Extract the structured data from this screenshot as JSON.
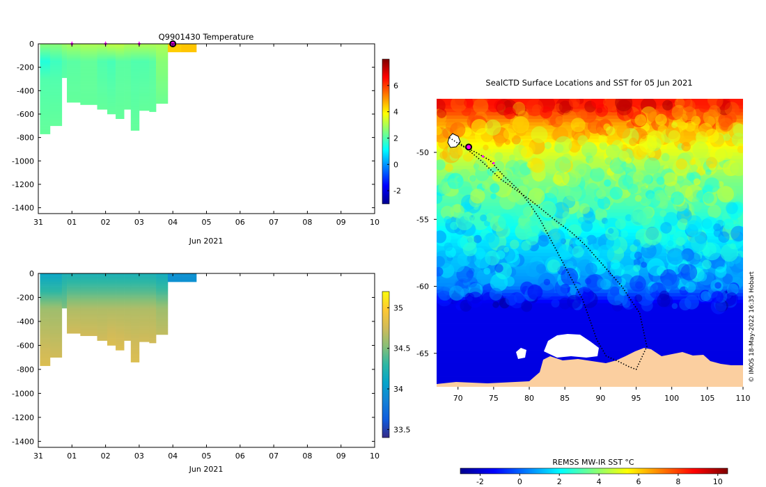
{
  "time_plots": {
    "title": "Q9901430  Temperature",
    "xlabel": "Jun 2021",
    "x_ticks": [
      "31",
      "01",
      "02",
      "03",
      "04",
      "05",
      "06",
      "07",
      "08",
      "09",
      "10"
    ],
    "y_ticks": [
      "0",
      "-200",
      "-400",
      "-600",
      "-800",
      "-1000",
      "-1200",
      "-1400"
    ]
  },
  "map_panel": {
    "title": "SealCTD Surface Locations and SST for 05 Jun 2021",
    "x_ticks": [
      "70",
      "75",
      "80",
      "85",
      "90",
      "95",
      "100",
      "105",
      "110"
    ],
    "y_ticks": [
      "-50",
      "-55",
      "-60",
      "-65"
    ],
    "colorbar_label": "REMSS MW-IR SST °C",
    "colorbar_ticks": [
      "-2",
      "0",
      "2",
      "4",
      "6",
      "8",
      "10"
    ],
    "credit": "© IMOS 18-May-2022 16:35 Hobart"
  },
  "colors": {
    "jet": [
      "#00008f",
      "#0000ff",
      "#007fff",
      "#00ffff",
      "#7fff7f",
      "#ffff00",
      "#ff7f00",
      "#ff0000",
      "#7f0000"
    ],
    "parula": [
      "#352a87",
      "#0f5cdd",
      "#1481d6",
      "#06a4ca",
      "#2eb7a4",
      "#87bf77",
      "#d1bb59",
      "#fec832",
      "#f9fb0e"
    ],
    "land": "#fbcfa0",
    "ice": "#ffffff",
    "track": "#000000",
    "marker": "#ff00ff"
  },
  "chart_data": [
    {
      "type": "heatmap",
      "name": "temperature-section",
      "title": "Q9901430  Temperature",
      "xlabel": "Jun 2021",
      "x_ticks": [
        "31",
        "01",
        "02",
        "03",
        "04",
        "05",
        "06",
        "07",
        "08",
        "09",
        "10"
      ],
      "xlim_days": [
        0,
        10
      ],
      "ylim": [
        -1450,
        0
      ],
      "colorbar": {
        "range": [
          -3,
          8
        ],
        "ticks": [
          -2,
          0,
          2,
          4,
          6
        ]
      },
      "profiles": [
        {
          "t": 0.05,
          "max_depth": 770,
          "levels": [
            {
              "d": 0,
              "v": 2.6
            },
            {
              "d": 150,
              "v": 1.5
            },
            {
              "d": 300,
              "v": 2.0
            },
            {
              "d": 770,
              "v": 2.2
            }
          ]
        },
        {
          "t": 0.35,
          "max_depth": 700,
          "levels": [
            {
              "d": 0,
              "v": 2.6
            },
            {
              "d": 150,
              "v": 1.8
            },
            {
              "d": 300,
              "v": 2.0
            },
            {
              "d": 700,
              "v": 2.2
            }
          ]
        },
        {
          "t": 0.7,
          "max_depth": 290,
          "levels": [
            {
              "d": 0,
              "v": 2.8
            },
            {
              "d": 150,
              "v": 2.0
            },
            {
              "d": 290,
              "v": 2.1
            }
          ]
        },
        {
          "t": 0.85,
          "max_depth": 500,
          "levels": [
            {
              "d": 0,
              "v": 2.9
            },
            {
              "d": 150,
              "v": 2.1
            },
            {
              "d": 500,
              "v": 2.2
            }
          ]
        },
        {
          "t": 1.25,
          "max_depth": 520,
          "levels": [
            {
              "d": 0,
              "v": 3.0
            },
            {
              "d": 150,
              "v": 2.2
            },
            {
              "d": 520,
              "v": 2.2
            }
          ]
        },
        {
          "t": 1.75,
          "max_depth": 560,
          "levels": [
            {
              "d": 0,
              "v": 3.0
            },
            {
              "d": 150,
              "v": 2.0
            },
            {
              "d": 560,
              "v": 2.2
            }
          ]
        },
        {
          "t": 2.05,
          "max_depth": 600,
          "levels": [
            {
              "d": 0,
              "v": 3.2
            },
            {
              "d": 150,
              "v": 1.9
            },
            {
              "d": 600,
              "v": 2.2
            }
          ]
        },
        {
          "t": 2.3,
          "max_depth": 640,
          "levels": [
            {
              "d": 0,
              "v": 3.2
            },
            {
              "d": 150,
              "v": 2.1
            },
            {
              "d": 640,
              "v": 2.2
            }
          ]
        },
        {
          "t": 2.55,
          "max_depth": 560,
          "levels": [
            {
              "d": 0,
              "v": 3.0
            },
            {
              "d": 150,
              "v": 2.1
            },
            {
              "d": 560,
              "v": 2.2
            }
          ]
        },
        {
          "t": 2.75,
          "max_depth": 740,
          "levels": [
            {
              "d": 0,
              "v": 3.0
            },
            {
              "d": 150,
              "v": 2.0
            },
            {
              "d": 740,
              "v": 2.2
            }
          ]
        },
        {
          "t": 3.0,
          "max_depth": 570,
          "levels": [
            {
              "d": 0,
              "v": 3.0
            },
            {
              "d": 150,
              "v": 2.0
            },
            {
              "d": 570,
              "v": 2.2
            }
          ]
        },
        {
          "t": 3.3,
          "max_depth": 580,
          "levels": [
            {
              "d": 0,
              "v": 3.0
            },
            {
              "d": 150,
              "v": 2.1
            },
            {
              "d": 580,
              "v": 2.2
            }
          ]
        },
        {
          "t": 3.5,
          "max_depth": 510,
          "levels": [
            {
              "d": 0,
              "v": 3.0
            },
            {
              "d": 150,
              "v": 2.6
            },
            {
              "d": 510,
              "v": 2.3
            }
          ]
        },
        {
          "t": 3.85,
          "max_depth": 70,
          "levels": [
            {
              "d": 0,
              "v": 4.4
            },
            {
              "d": 70,
              "v": 4.4
            }
          ]
        },
        {
          "t": 4.25,
          "max_depth": 70,
          "levels": [
            {
              "d": 0,
              "v": 4.5
            },
            {
              "d": 70,
              "v": 4.5
            }
          ]
        }
      ],
      "markers": [
        {
          "t": 1.0,
          "d": 0
        },
        {
          "t": 2.0,
          "d": 0
        },
        {
          "t": 3.0,
          "d": 0
        },
        {
          "t": 4.0,
          "d": 0,
          "current": true
        }
      ]
    },
    {
      "type": "heatmap",
      "name": "salinity-section",
      "xlabel": "Jun 2021",
      "x_ticks": [
        "31",
        "01",
        "02",
        "03",
        "04",
        "05",
        "06",
        "07",
        "08",
        "09",
        "10"
      ],
      "xlim_days": [
        0,
        10
      ],
      "ylim": [
        -1450,
        0
      ],
      "colorbar": {
        "range": [
          33.4,
          35.2
        ],
        "ticks": [
          33.5,
          34,
          34.5,
          35
        ]
      },
      "profiles": [
        {
          "t": 0.05,
          "max_depth": 770,
          "levels": [
            {
              "d": 0,
              "v": 34.1
            },
            {
              "d": 150,
              "v": 34.3
            },
            {
              "d": 300,
              "v": 34.6
            },
            {
              "d": 770,
              "v": 34.8
            }
          ]
        },
        {
          "t": 0.35,
          "max_depth": 700,
          "levels": [
            {
              "d": 0,
              "v": 34.1
            },
            {
              "d": 150,
              "v": 34.3
            },
            {
              "d": 300,
              "v": 34.6
            },
            {
              "d": 700,
              "v": 34.75
            }
          ]
        },
        {
          "t": 0.7,
          "max_depth": 290,
          "levels": [
            {
              "d": 0,
              "v": 34.2
            },
            {
              "d": 150,
              "v": 34.35
            },
            {
              "d": 290,
              "v": 34.5
            }
          ]
        },
        {
          "t": 0.85,
          "max_depth": 500,
          "levels": [
            {
              "d": 0,
              "v": 34.2
            },
            {
              "d": 150,
              "v": 34.4
            },
            {
              "d": 300,
              "v": 34.65
            },
            {
              "d": 500,
              "v": 34.75
            }
          ]
        },
        {
          "t": 1.25,
          "max_depth": 520,
          "levels": [
            {
              "d": 0,
              "v": 34.2
            },
            {
              "d": 150,
              "v": 34.4
            },
            {
              "d": 300,
              "v": 34.65
            },
            {
              "d": 520,
              "v": 34.75
            }
          ]
        },
        {
          "t": 1.75,
          "max_depth": 560,
          "levels": [
            {
              "d": 0,
              "v": 34.2
            },
            {
              "d": 150,
              "v": 34.4
            },
            {
              "d": 300,
              "v": 34.65
            },
            {
              "d": 560,
              "v": 34.75
            }
          ]
        },
        {
          "t": 2.05,
          "max_depth": 600,
          "levels": [
            {
              "d": 0,
              "v": 34.2
            },
            {
              "d": 150,
              "v": 34.4
            },
            {
              "d": 300,
              "v": 34.65
            },
            {
              "d": 600,
              "v": 34.8
            }
          ]
        },
        {
          "t": 2.3,
          "max_depth": 640,
          "levels": [
            {
              "d": 0,
              "v": 34.2
            },
            {
              "d": 150,
              "v": 34.4
            },
            {
              "d": 300,
              "v": 34.65
            },
            {
              "d": 640,
              "v": 34.8
            }
          ]
        },
        {
          "t": 2.55,
          "max_depth": 560,
          "levels": [
            {
              "d": 0,
              "v": 34.2
            },
            {
              "d": 150,
              "v": 34.4
            },
            {
              "d": 300,
              "v": 34.65
            },
            {
              "d": 560,
              "v": 34.75
            }
          ]
        },
        {
          "t": 2.75,
          "max_depth": 740,
          "levels": [
            {
              "d": 0,
              "v": 34.2
            },
            {
              "d": 150,
              "v": 34.4
            },
            {
              "d": 300,
              "v": 34.65
            },
            {
              "d": 740,
              "v": 34.8
            }
          ]
        },
        {
          "t": 3.0,
          "max_depth": 570,
          "levels": [
            {
              "d": 0,
              "v": 34.2
            },
            {
              "d": 150,
              "v": 34.4
            },
            {
              "d": 300,
              "v": 34.65
            },
            {
              "d": 570,
              "v": 34.75
            }
          ]
        },
        {
          "t": 3.3,
          "max_depth": 580,
          "levels": [
            {
              "d": 0,
              "v": 34.2
            },
            {
              "d": 150,
              "v": 34.4
            },
            {
              "d": 300,
              "v": 34.65
            },
            {
              "d": 580,
              "v": 34.75
            }
          ]
        },
        {
          "t": 3.5,
          "max_depth": 510,
          "levels": [
            {
              "d": 0,
              "v": 34.15
            },
            {
              "d": 150,
              "v": 34.35
            },
            {
              "d": 300,
              "v": 34.6
            },
            {
              "d": 510,
              "v": 34.7
            }
          ]
        },
        {
          "t": 3.85,
          "max_depth": 70,
          "levels": [
            {
              "d": 0,
              "v": 33.95
            },
            {
              "d": 70,
              "v": 33.95
            }
          ]
        },
        {
          "t": 4.25,
          "max_depth": 70,
          "levels": [
            {
              "d": 0,
              "v": 33.95
            },
            {
              "d": 70,
              "v": 33.95
            }
          ]
        }
      ]
    },
    {
      "type": "heatmap",
      "name": "sst-map",
      "title": "SealCTD Surface Locations and SST for 05 Jun 2021",
      "xlim": [
        67,
        110
      ],
      "ylim": [
        -67.5,
        -46
      ],
      "x_ticks": [
        70,
        75,
        80,
        85,
        90,
        95,
        100,
        105,
        110
      ],
      "y_ticks": [
        -50,
        -55,
        -60,
        -65
      ],
      "colorbar": {
        "label": "REMSS MW-IR SST °C",
        "range": [
          -3,
          10.5
        ],
        "ticks": [
          -2,
          0,
          2,
          4,
          6,
          8,
          10
        ]
      },
      "sst_by_lat": [
        {
          "lat": -46.5,
          "v": 8.5
        },
        {
          "lat": -48,
          "v": 6.5
        },
        {
          "lat": -50,
          "v": 5.0
        },
        {
          "lat": -52,
          "v": 3.8
        },
        {
          "lat": -54,
          "v": 3.0
        },
        {
          "lat": -56,
          "v": 2.0
        },
        {
          "lat": -58,
          "v": 1.2
        },
        {
          "lat": -60,
          "v": 0.5
        },
        {
          "lat": -61.3,
          "v": -1.6
        },
        {
          "lat": -67.5,
          "v": -1.8
        }
      ],
      "track": [
        [
          68.8,
          -48.9
        ],
        [
          70.5,
          -49.5
        ],
        [
          72.5,
          -50.0
        ],
        [
          74.5,
          -50.6
        ],
        [
          76.5,
          -51.8
        ],
        [
          78.5,
          -52.8
        ],
        [
          80.0,
          -53.8
        ],
        [
          81.5,
          -55.0
        ],
        [
          83.0,
          -56.5
        ],
        [
          84.5,
          -58.0
        ],
        [
          86.0,
          -59.5
        ],
        [
          87.5,
          -61.0
        ],
        [
          88.5,
          -62.5
        ],
        [
          89.5,
          -64.0
        ],
        [
          90.8,
          -65.2
        ],
        [
          92.5,
          -65.6
        ],
        [
          94.0,
          -66.0
        ],
        [
          95.0,
          -66.2
        ],
        [
          96.5,
          -64.5
        ],
        [
          95.5,
          -62.0
        ],
        [
          93.0,
          -60.0
        ],
        [
          90.5,
          -58.5
        ],
        [
          88.0,
          -57.0
        ],
        [
          86.0,
          -56.0
        ],
        [
          83.5,
          -55.0
        ],
        [
          80.0,
          -53.5
        ],
        [
          76.0,
          -52.0
        ],
        [
          73.0,
          -50.5
        ],
        [
          70.0,
          -49.2
        ]
      ],
      "markers": [
        {
          "lon": 71.5,
          "lat": -49.6
        },
        {
          "lon": 73.5,
          "lat": -50.3
        },
        {
          "lon": 75.0,
          "lat": -50.8
        },
        {
          "lon": 71.5,
          "lat": -49.6,
          "current": true
        }
      ]
    }
  ]
}
